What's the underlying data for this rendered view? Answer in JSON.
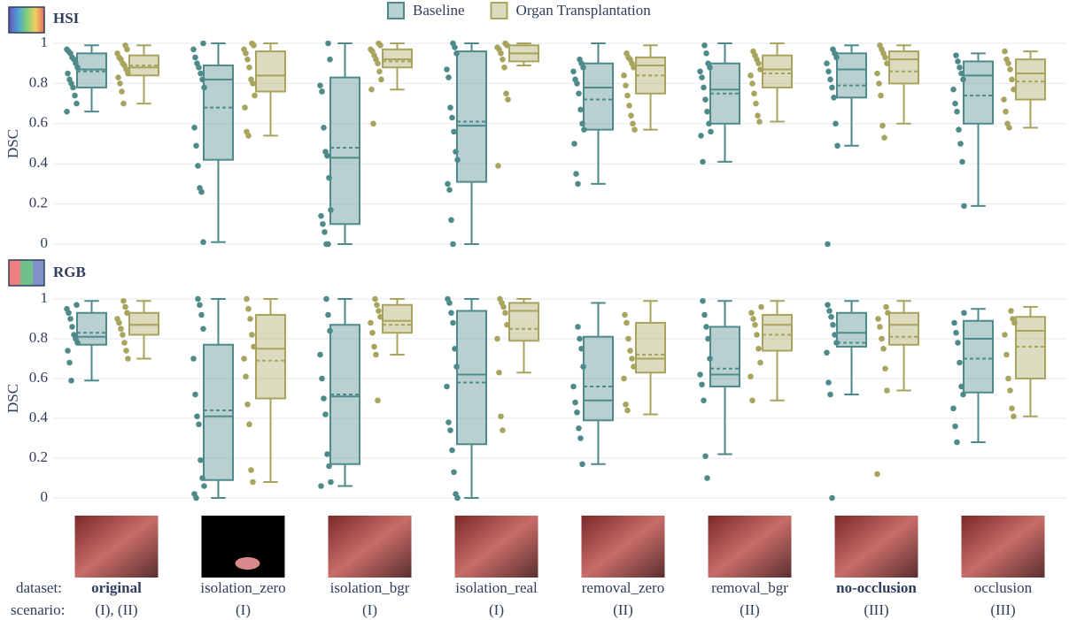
{
  "chart_data": [
    {
      "type": "box",
      "title": "HSI",
      "ylabel": "DSC",
      "ylim": [
        0,
        1
      ],
      "yticks": [
        0,
        0.2,
        0.4,
        0.6,
        0.8,
        1
      ],
      "grid": true,
      "legend": "top",
      "series": [
        {
          "name": "Baseline",
          "color": "#4f8a8b",
          "boxes": [
            {
              "min": 0.66,
              "q1": 0.78,
              "median": 0.87,
              "mean": 0.86,
              "q3": 0.95,
              "max": 0.99,
              "points": [
                0.66,
                0.7,
                0.74,
                0.78,
                0.8,
                0.82,
                0.85,
                0.88,
                0.9,
                0.92,
                0.93,
                0.95,
                0.96,
                0.97
              ]
            },
            {
              "min": 0.01,
              "q1": 0.42,
              "median": 0.82,
              "mean": 0.68,
              "q3": 0.89,
              "max": 1.0,
              "points": [
                0.01,
                0.26,
                0.28,
                0.39,
                0.49,
                0.58,
                0.78,
                0.82,
                0.85,
                0.88,
                0.9,
                0.93,
                0.97,
                1.0
              ]
            },
            {
              "min": 0.0,
              "q1": 0.1,
              "median": 0.43,
              "mean": 0.48,
              "q3": 0.83,
              "max": 1.0,
              "points": [
                0,
                0,
                0.06,
                0.1,
                0.14,
                0.17,
                0.33,
                0.44,
                0.46,
                0.58,
                0.76,
                0.79,
                0.92,
                1.0
              ]
            },
            {
              "min": 0.0,
              "q1": 0.31,
              "median": 0.59,
              "mean": 0.61,
              "q3": 0.96,
              "max": 1.0,
              "points": [
                0,
                0.12,
                0.27,
                0.3,
                0.42,
                0.46,
                0.56,
                0.63,
                0.68,
                0.83,
                0.87,
                0.95,
                0.98,
                1.0
              ]
            },
            {
              "min": 0.3,
              "q1": 0.57,
              "median": 0.78,
              "mean": 0.72,
              "q3": 0.9,
              "max": 1.0,
              "points": [
                0.3,
                0.35,
                0.5,
                0.57,
                0.6,
                0.67,
                0.75,
                0.8,
                0.82,
                0.86,
                0.88,
                0.9,
                0.92
              ]
            },
            {
              "min": 0.41,
              "q1": 0.6,
              "median": 0.77,
              "mean": 0.75,
              "q3": 0.9,
              "max": 1.0,
              "points": [
                0.41,
                0.54,
                0.56,
                0.6,
                0.66,
                0.72,
                0.78,
                0.83,
                0.86,
                0.88,
                0.9,
                0.95,
                0.99
              ]
            },
            {
              "min": 0.49,
              "q1": 0.73,
              "median": 0.87,
              "mean": 0.79,
              "q3": 0.95,
              "max": 0.99,
              "points": [
                0,
                0.49,
                0.6,
                0.73,
                0.78,
                0.82,
                0.86,
                0.9,
                0.93,
                0.95,
                0.97
              ]
            },
            {
              "min": 0.19,
              "q1": 0.6,
              "median": 0.84,
              "mean": 0.74,
              "q3": 0.91,
              "max": 0.95,
              "points": [
                0.19,
                0.41,
                0.5,
                0.57,
                0.66,
                0.7,
                0.77,
                0.82,
                0.85,
                0.88,
                0.91,
                0.94
              ]
            }
          ]
        },
        {
          "name": "Organ Transplantation",
          "color": "#a8a45e",
          "boxes": [
            {
              "min": 0.7,
              "q1": 0.84,
              "median": 0.88,
              "mean": 0.89,
              "q3": 0.94,
              "max": 0.99,
              "points": [
                0.7,
                0.76,
                0.8,
                0.83,
                0.85,
                0.87,
                0.89,
                0.9,
                0.92,
                0.93,
                0.95,
                0.97,
                0.99
              ]
            },
            {
              "min": 0.54,
              "q1": 0.76,
              "median": 0.84,
              "mean": 0.84,
              "q3": 0.96,
              "max": 1.0,
              "points": [
                0.54,
                0.56,
                0.68,
                0.74,
                0.8,
                0.82,
                0.88,
                0.92,
                0.95,
                0.97,
                0.99,
                1.0
              ]
            },
            {
              "min": 0.77,
              "q1": 0.88,
              "median": 0.92,
              "mean": 0.91,
              "q3": 0.97,
              "max": 1.0,
              "points": [
                0.6,
                0.77,
                0.82,
                0.86,
                0.9,
                0.92,
                0.94,
                0.96,
                0.97,
                0.99,
                1.0
              ]
            },
            {
              "min": 0.89,
              "q1": 0.91,
              "median": 0.95,
              "mean": 0.95,
              "q3": 0.99,
              "max": 1.0,
              "points": [
                0.39,
                0.72,
                0.75,
                0.88,
                0.92,
                0.95,
                0.97,
                0.98,
                0.99,
                1.0
              ]
            },
            {
              "min": 0.57,
              "q1": 0.75,
              "median": 0.89,
              "mean": 0.84,
              "q3": 0.93,
              "max": 0.99,
              "points": [
                0.57,
                0.6,
                0.64,
                0.69,
                0.74,
                0.79,
                0.84,
                0.88,
                0.9,
                0.92,
                0.93,
                0.95
              ]
            },
            {
              "min": 0.61,
              "q1": 0.78,
              "median": 0.87,
              "mean": 0.85,
              "q3": 0.94,
              "max": 1.0,
              "points": [
                0.61,
                0.64,
                0.7,
                0.75,
                0.8,
                0.84,
                0.87,
                0.9,
                0.92,
                0.94,
                0.96
              ]
            },
            {
              "min": 0.6,
              "q1": 0.8,
              "median": 0.92,
              "mean": 0.86,
              "q3": 0.96,
              "max": 0.99,
              "points": [
                0.53,
                0.59,
                0.74,
                0.8,
                0.85,
                0.9,
                0.93,
                0.95,
                0.97,
                0.99
              ]
            },
            {
              "min": 0.58,
              "q1": 0.72,
              "median": 0.85,
              "mean": 0.81,
              "q3": 0.92,
              "max": 0.96,
              "points": [
                0.58,
                0.6,
                0.66,
                0.72,
                0.77,
                0.82,
                0.87,
                0.9,
                0.92,
                0.96
              ]
            }
          ]
        }
      ]
    },
    {
      "type": "box",
      "title": "RGB",
      "ylabel": "DSC",
      "ylim": [
        0,
        1
      ],
      "yticks": [
        0,
        0.2,
        0.4,
        0.6,
        0.8,
        1
      ],
      "grid": true,
      "x_title": "dataset:",
      "categories": [
        "original",
        "isolation_zero",
        "isolation_bgr",
        "isolation_real",
        "removal_zero",
        "removal_bgr",
        "no-occlusion",
        "occlusion"
      ],
      "highlighted": [
        0,
        6
      ],
      "x2_title": "scenario:",
      "scenarios": [
        "(I), (II)",
        "(I)",
        "(I)",
        "(I)",
        "(II)",
        "(II)",
        "(III)",
        "(III)"
      ],
      "series": [
        {
          "color": "#4f8a8b",
          "boxes": [
            {
              "min": 0.59,
              "q1": 0.77,
              "median": 0.81,
              "mean": 0.83,
              "q3": 0.93,
              "max": 0.99,
              "points": [
                0.59,
                0.68,
                0.74,
                0.78,
                0.8,
                0.82,
                0.86,
                0.9,
                0.93,
                0.95,
                0.97
              ]
            },
            {
              "min": 0.0,
              "q1": 0.09,
              "median": 0.41,
              "mean": 0.44,
              "q3": 0.77,
              "max": 1.0,
              "points": [
                0,
                0.02,
                0.06,
                0.1,
                0.19,
                0.37,
                0.41,
                0.52,
                0.7,
                0.85,
                0.92,
                0.97,
                1.0
              ]
            },
            {
              "min": 0.06,
              "q1": 0.17,
              "median": 0.51,
              "mean": 0.52,
              "q3": 0.87,
              "max": 1.0,
              "points": [
                0.06,
                0.08,
                0.16,
                0.22,
                0.42,
                0.5,
                0.6,
                0.72,
                0.84,
                0.92,
                1.0
              ]
            },
            {
              "min": 0.0,
              "q1": 0.27,
              "median": 0.62,
              "mean": 0.58,
              "q3": 0.94,
              "max": 1.0,
              "points": [
                0,
                0.02,
                0.13,
                0.24,
                0.34,
                0.38,
                0.56,
                0.66,
                0.75,
                0.88,
                0.93,
                0.98,
                1.0
              ]
            },
            {
              "min": 0.17,
              "q1": 0.39,
              "median": 0.49,
              "mean": 0.56,
              "q3": 0.81,
              "max": 0.98,
              "points": [
                0.17,
                0.3,
                0.35,
                0.43,
                0.48,
                0.56,
                0.66,
                0.75,
                0.8,
                0.86
              ]
            },
            {
              "min": 0.22,
              "q1": 0.56,
              "median": 0.62,
              "mean": 0.65,
              "q3": 0.86,
              "max": 0.99,
              "points": [
                0.1,
                0.21,
                0.49,
                0.57,
                0.62,
                0.7,
                0.8,
                0.86,
                0.92,
                0.99
              ]
            },
            {
              "min": 0.52,
              "q1": 0.76,
              "median": 0.83,
              "mean": 0.78,
              "q3": 0.93,
              "max": 0.99,
              "points": [
                0,
                0.52,
                0.58,
                0.73,
                0.78,
                0.82,
                0.87,
                0.91,
                0.94,
                0.97
              ]
            },
            {
              "min": 0.28,
              "q1": 0.53,
              "median": 0.8,
              "mean": 0.7,
              "q3": 0.89,
              "max": 0.95,
              "points": [
                0.28,
                0.36,
                0.45,
                0.52,
                0.56,
                0.68,
                0.78,
                0.83,
                0.88,
                0.93
              ]
            }
          ]
        },
        {
          "color": "#a8a45e",
          "boxes": [
            {
              "min": 0.7,
              "q1": 0.82,
              "median": 0.87,
              "mean": 0.87,
              "q3": 0.93,
              "max": 0.99,
              "points": [
                0.7,
                0.74,
                0.78,
                0.82,
                0.85,
                0.88,
                0.9,
                0.93,
                0.96,
                0.99
              ]
            },
            {
              "min": 0.08,
              "q1": 0.5,
              "median": 0.75,
              "mean": 0.69,
              "q3": 0.92,
              "max": 1.0,
              "points": [
                0.08,
                0.14,
                0.37,
                0.47,
                0.61,
                0.7,
                0.76,
                0.82,
                0.9,
                0.95,
                1.0
              ]
            },
            {
              "min": 0.72,
              "q1": 0.83,
              "median": 0.89,
              "mean": 0.87,
              "q3": 0.97,
              "max": 1.0,
              "points": [
                0.49,
                0.72,
                0.76,
                0.83,
                0.88,
                0.91,
                0.94,
                0.97,
                1.0
              ]
            },
            {
              "min": 0.63,
              "q1": 0.79,
              "median": 0.94,
              "mean": 0.85,
              "q3": 0.98,
              "max": 1.0,
              "points": [
                0.34,
                0.41,
                0.63,
                0.8,
                0.87,
                0.93,
                0.96,
                0.98,
                1.0
              ]
            },
            {
              "min": 0.42,
              "q1": 0.63,
              "median": 0.7,
              "mean": 0.72,
              "q3": 0.88,
              "max": 0.99,
              "points": [
                0.44,
                0.47,
                0.6,
                0.66,
                0.7,
                0.74,
                0.8,
                0.88,
                0.92
              ]
            },
            {
              "min": 0.49,
              "q1": 0.74,
              "median": 0.87,
              "mean": 0.82,
              "q3": 0.92,
              "max": 0.99,
              "points": [
                0.49,
                0.61,
                0.68,
                0.75,
                0.82,
                0.87,
                0.9,
                0.93,
                0.96
              ]
            },
            {
              "min": 0.54,
              "q1": 0.77,
              "median": 0.87,
              "mean": 0.81,
              "q3": 0.93,
              "max": 0.99,
              "points": [
                0.12,
                0.54,
                0.65,
                0.75,
                0.8,
                0.86,
                0.9,
                0.93,
                0.96
              ]
            },
            {
              "min": 0.41,
              "q1": 0.6,
              "median": 0.84,
              "mean": 0.76,
              "q3": 0.91,
              "max": 0.96,
              "points": [
                0.41,
                0.45,
                0.54,
                0.6,
                0.72,
                0.82,
                0.88,
                0.9,
                0.94
              ]
            }
          ]
        }
      ]
    }
  ]
}
